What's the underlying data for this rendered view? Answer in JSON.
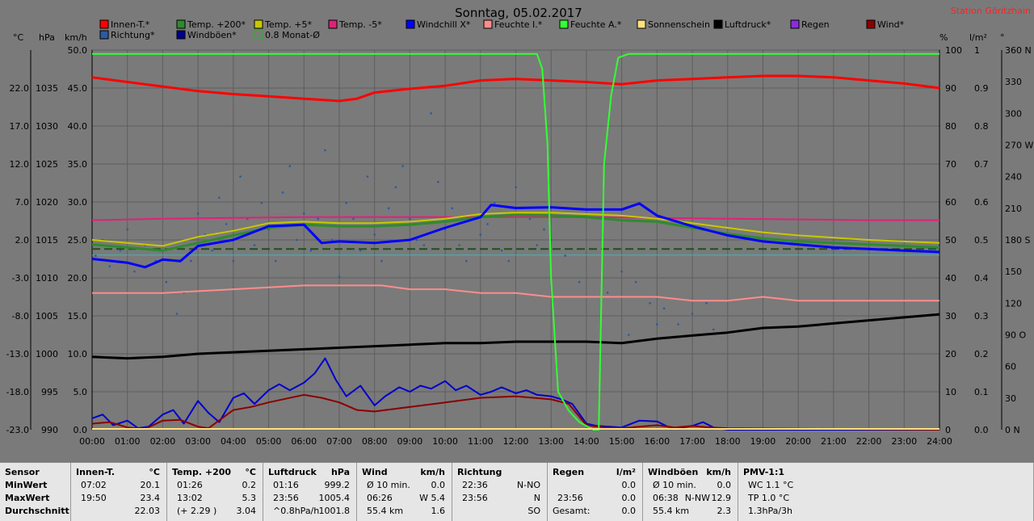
{
  "title": "Sonntag, 05.02.2017",
  "station": "Station Göritzhain",
  "unit_labels": {
    "c": "°C",
    "hpa": "hPa",
    "kmh": "km/h",
    "pct": "%",
    "lm2": "l/m²",
    "deg": "°"
  },
  "legend": [
    {
      "label": "Innen-T.*",
      "color": "#ff0000"
    },
    {
      "label": "Temp. +200*",
      "color": "#2e8b2e"
    },
    {
      "label": "Temp. +5*",
      "color": "#c8c800"
    },
    {
      "label": "Temp. -5*",
      "color": "#e0207a"
    },
    {
      "label": "Windchill X*",
      "color": "#0000ff"
    },
    {
      "label": "Feuchte I.*",
      "color": "#ff8c8c"
    },
    {
      "label": "Feuchte A.*",
      "color": "#33ff33"
    },
    {
      "label": "Sonnenschein",
      "color": "#ffe080"
    },
    {
      "label": "Luftdruck*",
      "color": "#000000"
    },
    {
      "label": "Regen",
      "color": "#8a2be2"
    },
    {
      "label": "Wind*",
      "color": "#8b0000"
    },
    {
      "label": "Richtung*",
      "color": "#2b5aa0"
    },
    {
      "label": "Windböen*",
      "color": "#00008b"
    },
    {
      "label": "0.8 Monat-Ø",
      "color": "#33aa33",
      "outline": true
    }
  ],
  "chart_data": {
    "type": "line",
    "x_labels": [
      "00:00",
      "01:00",
      "02:00",
      "03:00",
      "04:00",
      "05:00",
      "06:00",
      "07:00",
      "08:00",
      "09:00",
      "10:00",
      "11:00",
      "12:00",
      "13:00",
      "14:00",
      "15:00",
      "16:00",
      "17:00",
      "18:00",
      "19:00",
      "20:00",
      "21:00",
      "22:00",
      "23:00",
      "24:00"
    ],
    "xlim": [
      0,
      24
    ],
    "axes": {
      "temp_c": {
        "ticks": [
          "22.0",
          "17.0",
          "12.0",
          "7.0",
          "2.0",
          "-3.0",
          "-8.0",
          "-13.0",
          "-18.0",
          "-23.0"
        ],
        "ylim": [
          -23,
          27
        ]
      },
      "pressure_hpa": {
        "ticks": [
          "1035",
          "1030",
          "1025",
          "1020",
          "1015",
          "1010",
          "1005",
          "1000",
          "995",
          "990"
        ],
        "ylim": [
          990,
          1040
        ]
      },
      "wind_kmh": {
        "ticks": [
          "50.0",
          "45.0",
          "40.0",
          "35.0",
          "30.0",
          "25.0",
          "20.0",
          "15.0",
          "10.0",
          "5.0",
          "0.0"
        ],
        "ylim": [
          0,
          50
        ]
      },
      "humidity_pct": {
        "ticks": [
          "100",
          "90",
          "80",
          "70",
          "60",
          "50",
          "40",
          "30",
          "20",
          "10",
          "0"
        ],
        "ylim": [
          0,
          100
        ]
      },
      "rain_lm2": {
        "ticks": [
          "1",
          "0.9",
          "0.8",
          "0.7",
          "0.6",
          "0.5",
          "0.4",
          "0.3",
          "0.2",
          "0.1",
          "0.0"
        ],
        "ylim": [
          0,
          1
        ]
      },
      "direction_deg": {
        "ticks": [
          "360 N",
          "330",
          "300",
          "270 W",
          "240",
          "210",
          "180 S",
          "150",
          "120",
          "90 O",
          "60",
          "30",
          "0 N"
        ],
        "ylim": [
          0,
          360
        ]
      }
    },
    "grid": true,
    "series": [
      {
        "name": "Innen-T.*",
        "axis": "temp_c",
        "color": "#ff0000",
        "width": 3,
        "x": [
          0,
          1,
          2,
          3,
          4,
          5,
          6,
          7,
          7.5,
          8,
          9,
          10,
          11,
          12,
          13,
          14,
          15,
          16,
          17,
          18,
          19,
          20,
          21,
          22,
          23,
          24
        ],
        "y": [
          23.4,
          22.8,
          22.2,
          21.6,
          21.2,
          20.9,
          20.6,
          20.3,
          20.6,
          21.4,
          21.9,
          22.3,
          23.0,
          23.2,
          23.0,
          22.8,
          22.5,
          23.0,
          23.2,
          23.4,
          23.6,
          23.6,
          23.4,
          23.0,
          22.6,
          22.0
        ]
      },
      {
        "name": "Temp. +200*",
        "axis": "temp_c",
        "color": "#2e8b2e",
        "width": 3,
        "x": [
          0,
          1,
          2,
          3,
          4,
          5,
          6,
          7,
          8,
          9,
          10,
          11,
          12,
          13,
          14,
          15,
          16,
          17,
          18,
          19,
          20,
          21,
          22,
          23,
          24
        ],
        "y": [
          1.4,
          1.0,
          0.6,
          1.6,
          2.6,
          3.6,
          4.0,
          3.8,
          3.8,
          4.0,
          4.4,
          5.0,
          5.3,
          5.2,
          5.0,
          4.6,
          4.4,
          3.6,
          2.8,
          2.2,
          1.8,
          1.6,
          1.4,
          1.2,
          1.0
        ]
      },
      {
        "name": "Temp. +5*",
        "axis": "temp_c",
        "color": "#c8c800",
        "width": 2,
        "x": [
          0,
          1,
          2,
          3,
          4,
          5,
          6,
          7,
          8,
          9,
          10,
          11,
          12,
          13,
          14,
          15,
          16,
          17,
          18,
          19,
          20,
          21,
          22,
          23,
          24
        ],
        "y": [
          2.0,
          1.6,
          1.2,
          2.4,
          3.2,
          4.2,
          4.4,
          4.2,
          4.2,
          4.4,
          4.8,
          5.4,
          5.6,
          5.6,
          5.4,
          5.2,
          4.8,
          4.2,
          3.6,
          3.0,
          2.6,
          2.3,
          2.0,
          1.8,
          1.6
        ]
      },
      {
        "name": "Temp. -5*",
        "axis": "temp_c",
        "color": "#e0207a",
        "width": 2,
        "x": [
          0,
          2,
          4,
          6,
          8,
          10,
          12,
          14,
          16,
          18,
          20,
          22,
          24
        ],
        "y": [
          4.6,
          4.8,
          4.9,
          5.0,
          5.0,
          5.0,
          5.0,
          5.0,
          4.9,
          4.8,
          4.7,
          4.6,
          4.6
        ]
      },
      {
        "name": "Windchill X*",
        "axis": "temp_c",
        "color": "#0000ff",
        "width": 3,
        "x": [
          0,
          1,
          1.5,
          2,
          2.5,
          3,
          4,
          5,
          6,
          6.5,
          7,
          8,
          9,
          10,
          11,
          11.3,
          12,
          13,
          14,
          15,
          15.5,
          16,
          17,
          18,
          19,
          20,
          21,
          22,
          23,
          24
        ],
        "y": [
          -0.5,
          -1.0,
          -1.6,
          -0.6,
          -0.8,
          1.2,
          2.0,
          3.8,
          4.0,
          1.6,
          1.8,
          1.6,
          2.0,
          3.6,
          5.0,
          6.6,
          6.2,
          6.3,
          6.0,
          6.0,
          6.8,
          5.2,
          3.8,
          2.6,
          1.8,
          1.4,
          1.0,
          0.8,
          0.6,
          0.4
        ]
      },
      {
        "name": "Feuchte I.*",
        "axis": "humidity_pct",
        "color": "#ff8c8c",
        "width": 2,
        "x": [
          0,
          2,
          4,
          6,
          7.2,
          8.2,
          9,
          10,
          11,
          12,
          13,
          14,
          15,
          16,
          17,
          18,
          19,
          20,
          21,
          22,
          23,
          24
        ],
        "y": [
          36,
          36,
          37,
          38,
          38,
          38,
          37,
          37,
          36,
          36,
          35,
          35,
          35,
          35,
          34,
          34,
          35,
          34,
          34,
          34,
          34,
          34
        ]
      },
      {
        "name": "Feuchte A.*",
        "axis": "humidity_pct",
        "color": "#33ff33",
        "width": 2,
        "x": [
          0,
          12.6,
          12.75,
          12.9,
          13,
          13.2,
          13.5,
          13.8,
          14.2,
          14.35,
          14.5,
          14.7,
          14.9,
          15.2,
          24
        ],
        "y": [
          99,
          99,
          95,
          75,
          40,
          10,
          5,
          2,
          0,
          0,
          70,
          88,
          98,
          99,
          99
        ]
      },
      {
        "name": "Luftdruck*",
        "axis": "pressure_hpa",
        "color": "#000000",
        "width": 3,
        "x": [
          0,
          1,
          2,
          3,
          4,
          5,
          6,
          7,
          8,
          9,
          10,
          11,
          12,
          13,
          14,
          15,
          16,
          17,
          18,
          19,
          20,
          21,
          22,
          23,
          24
        ],
        "y": [
          999.6,
          999.4,
          999.6,
          1000.0,
          1000.2,
          1000.4,
          1000.6,
          1000.8,
          1001.0,
          1001.2,
          1001.4,
          1001.4,
          1001.6,
          1001.6,
          1001.6,
          1001.4,
          1002.0,
          1002.4,
          1002.8,
          1003.4,
          1003.6,
          1004.0,
          1004.4,
          1004.8,
          1005.2
        ]
      },
      {
        "name": "Wind*",
        "axis": "wind_kmh",
        "color": "#8b0000",
        "width": 2,
        "x": [
          0,
          0.5,
          1,
          1.5,
          2,
          2.5,
          3,
          3.3,
          4,
          4.5,
          5,
          6,
          6.5,
          7,
          7.5,
          8,
          9,
          10,
          11,
          12,
          13,
          13.5,
          14,
          14.5,
          15,
          15.5,
          16,
          16.5,
          17,
          17.5,
          18,
          24
        ],
        "y": [
          0.8,
          1.0,
          0.3,
          0.1,
          1.2,
          1.3,
          0.4,
          0.2,
          2.6,
          3.0,
          3.6,
          4.6,
          4.2,
          3.6,
          2.6,
          2.4,
          3.0,
          3.6,
          4.2,
          4.4,
          4.0,
          3.4,
          0.6,
          0.3,
          0.2,
          0.4,
          0.6,
          0.3,
          0.5,
          0.3,
          0.2,
          0
        ]
      },
      {
        "name": "Windböen*",
        "axis": "wind_kmh",
        "color": "#0000cc",
        "width": 2,
        "x": [
          0,
          0.3,
          0.6,
          1,
          1.3,
          1.6,
          2,
          2.3,
          2.6,
          3,
          3.3,
          3.6,
          4,
          4.3,
          4.6,
          5,
          5.3,
          5.6,
          6,
          6.3,
          6.6,
          6.9,
          7.2,
          7.6,
          8,
          8.3,
          8.7,
          9,
          9.3,
          9.6,
          10,
          10.3,
          10.6,
          11,
          11.3,
          11.6,
          12,
          12.3,
          12.6,
          13,
          13.3,
          13.6,
          14,
          14.3,
          15,
          15.5,
          16,
          16.3,
          16.6,
          17,
          17.3,
          17.6,
          18,
          24
        ],
        "y": [
          1.5,
          2.0,
          0.6,
          1.2,
          0.2,
          0.4,
          2.0,
          2.6,
          0.8,
          3.8,
          2.2,
          1.0,
          4.2,
          4.8,
          3.4,
          5.2,
          6.0,
          5.2,
          6.2,
          7.4,
          9.4,
          6.6,
          4.4,
          5.8,
          3.2,
          4.4,
          5.6,
          5.0,
          5.8,
          5.4,
          6.4,
          5.2,
          5.8,
          4.6,
          5.0,
          5.6,
          4.8,
          5.2,
          4.6,
          4.4,
          4.0,
          3.4,
          0.8,
          0.5,
          0.3,
          1.2,
          1.1,
          0.4,
          0.2,
          0.5,
          1.0,
          0.3,
          0,
          0
        ]
      },
      {
        "name": "Richtung*",
        "axis": "direction_deg",
        "color": "#2b5aa0",
        "width": 0,
        "scatter": true,
        "x": [
          0.1,
          0.3,
          0.5,
          0.8,
          1.0,
          1.2,
          1.5,
          1.8,
          2.1,
          2.4,
          2.6,
          2.8,
          3.0,
          3.2,
          3.4,
          3.6,
          3.8,
          4.0,
          4.2,
          4.4,
          4.6,
          4.8,
          5.0,
          5.2,
          5.4,
          5.6,
          5.8,
          6.0,
          6.2,
          6.4,
          6.6,
          6.8,
          7.0,
          7.2,
          7.4,
          7.6,
          7.8,
          8.0,
          8.2,
          8.4,
          8.6,
          8.8,
          9.0,
          9.2,
          9.4,
          9.6,
          9.8,
          10.0,
          10.2,
          10.4,
          10.6,
          10.8,
          11.0,
          11.2,
          11.4,
          11.6,
          11.8,
          12.0,
          12.2,
          12.4,
          12.6,
          12.8,
          13.0,
          15.0,
          15.4,
          15.8,
          16.2,
          16.6,
          17.0,
          17.4,
          17.6,
          13.4,
          13.8,
          14.6,
          15.2,
          16.0
        ],
        "y": [
          165,
          180,
          155,
          170,
          190,
          150,
          175,
          160,
          140,
          110,
          130,
          160,
          205,
          185,
          170,
          220,
          195,
          160,
          240,
          200,
          175,
          215,
          190,
          160,
          225,
          250,
          180,
          205,
          170,
          200,
          265,
          180,
          145,
          215,
          200,
          170,
          240,
          185,
          160,
          210,
          230,
          250,
          200,
          180,
          175,
          300,
          235,
          190,
          210,
          175,
          160,
          200,
          185,
          195,
          215,
          170,
          160,
          230,
          210,
          200,
          175,
          190,
          180,
          150,
          140,
          120,
          115,
          100,
          110,
          120,
          95,
          165,
          140,
          130,
          90,
          100
        ]
      }
    ],
    "reference_lines": [
      {
        "axis": "temp_c",
        "value": 0.8,
        "color": "#1f4f1f",
        "dash": true,
        "label": "0.8 Monat-Ø"
      },
      {
        "axis": "temp_c",
        "value": 0.0,
        "color": "#4ab0b0",
        "dash": false
      }
    ]
  },
  "stats": {
    "columns": [
      {
        "header": "Sensor",
        "unit": "",
        "rows": [
          [
            "MinWert",
            "",
            ""
          ],
          [
            "MaxWert",
            "",
            ""
          ],
          [
            "Durchschnitt",
            "",
            ""
          ]
        ],
        "label_col": true
      },
      {
        "header": "Innen-T.",
        "unit": "°C",
        "rows": [
          [
            "07:02",
            "",
            "20.1"
          ],
          [
            "19:50",
            "",
            "23.4"
          ],
          [
            "",
            "",
            "22.03"
          ]
        ]
      },
      {
        "header": "Temp. +200",
        "unit": "°C",
        "rows": [
          [
            "01:26",
            "",
            "0.2"
          ],
          [
            "13:02",
            "",
            "5.3"
          ],
          [
            "(+ 2.29 )",
            "",
            "3.04"
          ]
        ]
      },
      {
        "header": "Luftdruck",
        "unit": "hPa",
        "rows": [
          [
            "01:16",
            "",
            "999.2"
          ],
          [
            "23:56",
            "",
            "1005.4"
          ],
          [
            "^0.8hPa/h",
            "",
            "1001.8"
          ]
        ]
      },
      {
        "header": "Wind",
        "unit": "km/h",
        "rows": [
          [
            "Ø 10 min.",
            "",
            "0.0"
          ],
          [
            "06:26",
            "",
            "W 5.4"
          ],
          [
            "55.4 km",
            "",
            "1.6"
          ]
        ]
      },
      {
        "header": "Richtung",
        "unit": "",
        "rows": [
          [
            "22:36",
            "",
            "N-NO"
          ],
          [
            "23:56",
            "",
            "N"
          ],
          [
            "",
            "",
            "SO"
          ]
        ]
      },
      {
        "header": "Regen",
        "unit": "l/m²",
        "rows": [
          [
            "",
            "",
            "0.0"
          ],
          [
            "23:56",
            "",
            "0.0"
          ],
          [
            "Gesamt:",
            "",
            "0.0"
          ]
        ]
      },
      {
        "header": "Windböen",
        "unit": "km/h",
        "rows": [
          [
            "Ø 10 min.",
            "",
            "0.0"
          ],
          [
            "06:38",
            "N-NW",
            "12.9"
          ],
          [
            "55.4 km",
            "",
            "2.3"
          ]
        ]
      },
      {
        "header": "PMV-1:1",
        "unit": "",
        "rows": [
          [
            "WC 1.1 °C",
            "",
            ""
          ],
          [
            "TP 1.0 °C",
            "",
            ""
          ],
          [
            "1.3hPa/3h",
            "",
            ""
          ]
        ]
      }
    ]
  }
}
